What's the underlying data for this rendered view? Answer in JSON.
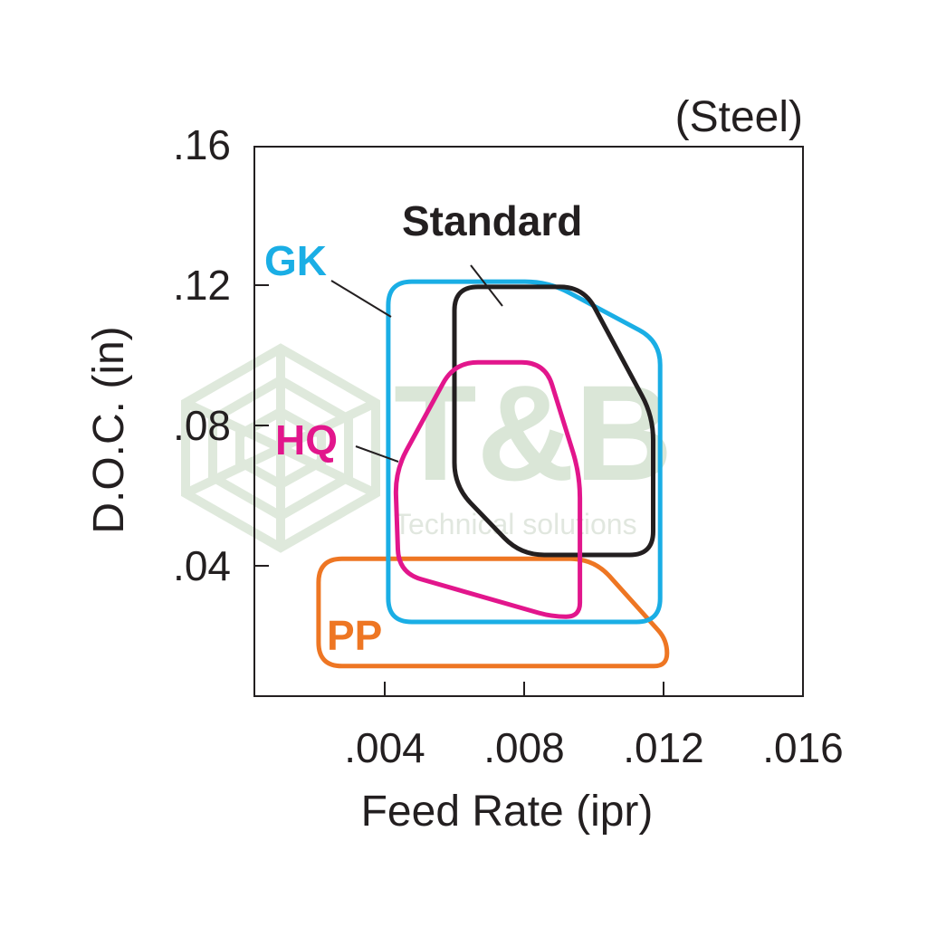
{
  "chart_data": {
    "type": "area",
    "subtitle": "(Steel)",
    "xlabel": "Feed Rate (ipr)",
    "ylabel": "D.O.C. (in)",
    "xlim": [
      0,
      0.016
    ],
    "ylim": [
      0,
      0.16
    ],
    "x_ticks": [
      0.004,
      0.008,
      0.012,
      0.016
    ],
    "x_tick_labels": [
      ".004",
      ".008",
      ".012",
      ".016"
    ],
    "y_ticks": [
      0.04,
      0.08,
      0.12,
      0.16
    ],
    "y_tick_labels": [
      ".04",
      ".08",
      ".12",
      ".16"
    ],
    "grid": false,
    "series": [
      {
        "name": "GK",
        "color": "#1AAEE5",
        "polygon": [
          [
            0.0041,
            0.121
          ],
          [
            0.0087,
            0.121
          ],
          [
            0.0119,
            0.104
          ],
          [
            0.0119,
            0.024
          ],
          [
            0.0041,
            0.024
          ]
        ]
      },
      {
        "name": "Standard",
        "color": "#231F20",
        "polygon": [
          [
            0.006,
            0.1195
          ],
          [
            0.0097,
            0.1195
          ],
          [
            0.0117,
            0.0826
          ],
          [
            0.0117,
            0.0431
          ],
          [
            0.0079,
            0.0431
          ],
          [
            0.006,
            0.0627
          ]
        ]
      },
      {
        "name": "HQ",
        "color": "#E2168C",
        "polygon": [
          [
            0.006,
            0.098
          ],
          [
            0.0086,
            0.098
          ],
          [
            0.0096,
            0.066
          ],
          [
            0.0096,
            0.0255
          ],
          [
            0.0088,
            0.0255
          ],
          [
            0.0044,
            0.038
          ],
          [
            0.0043,
            0.067
          ]
        ]
      },
      {
        "name": "PP",
        "color": "#EE7623",
        "polygon": [
          [
            0.0021,
            0.042
          ],
          [
            0.01,
            0.042
          ],
          [
            0.0121,
            0.0188
          ],
          [
            0.0121,
            0.0114
          ],
          [
            0.0021,
            0.0114
          ]
        ]
      }
    ]
  },
  "watermark": {
    "logo": "T&B",
    "tagline": "Technical solutions"
  }
}
